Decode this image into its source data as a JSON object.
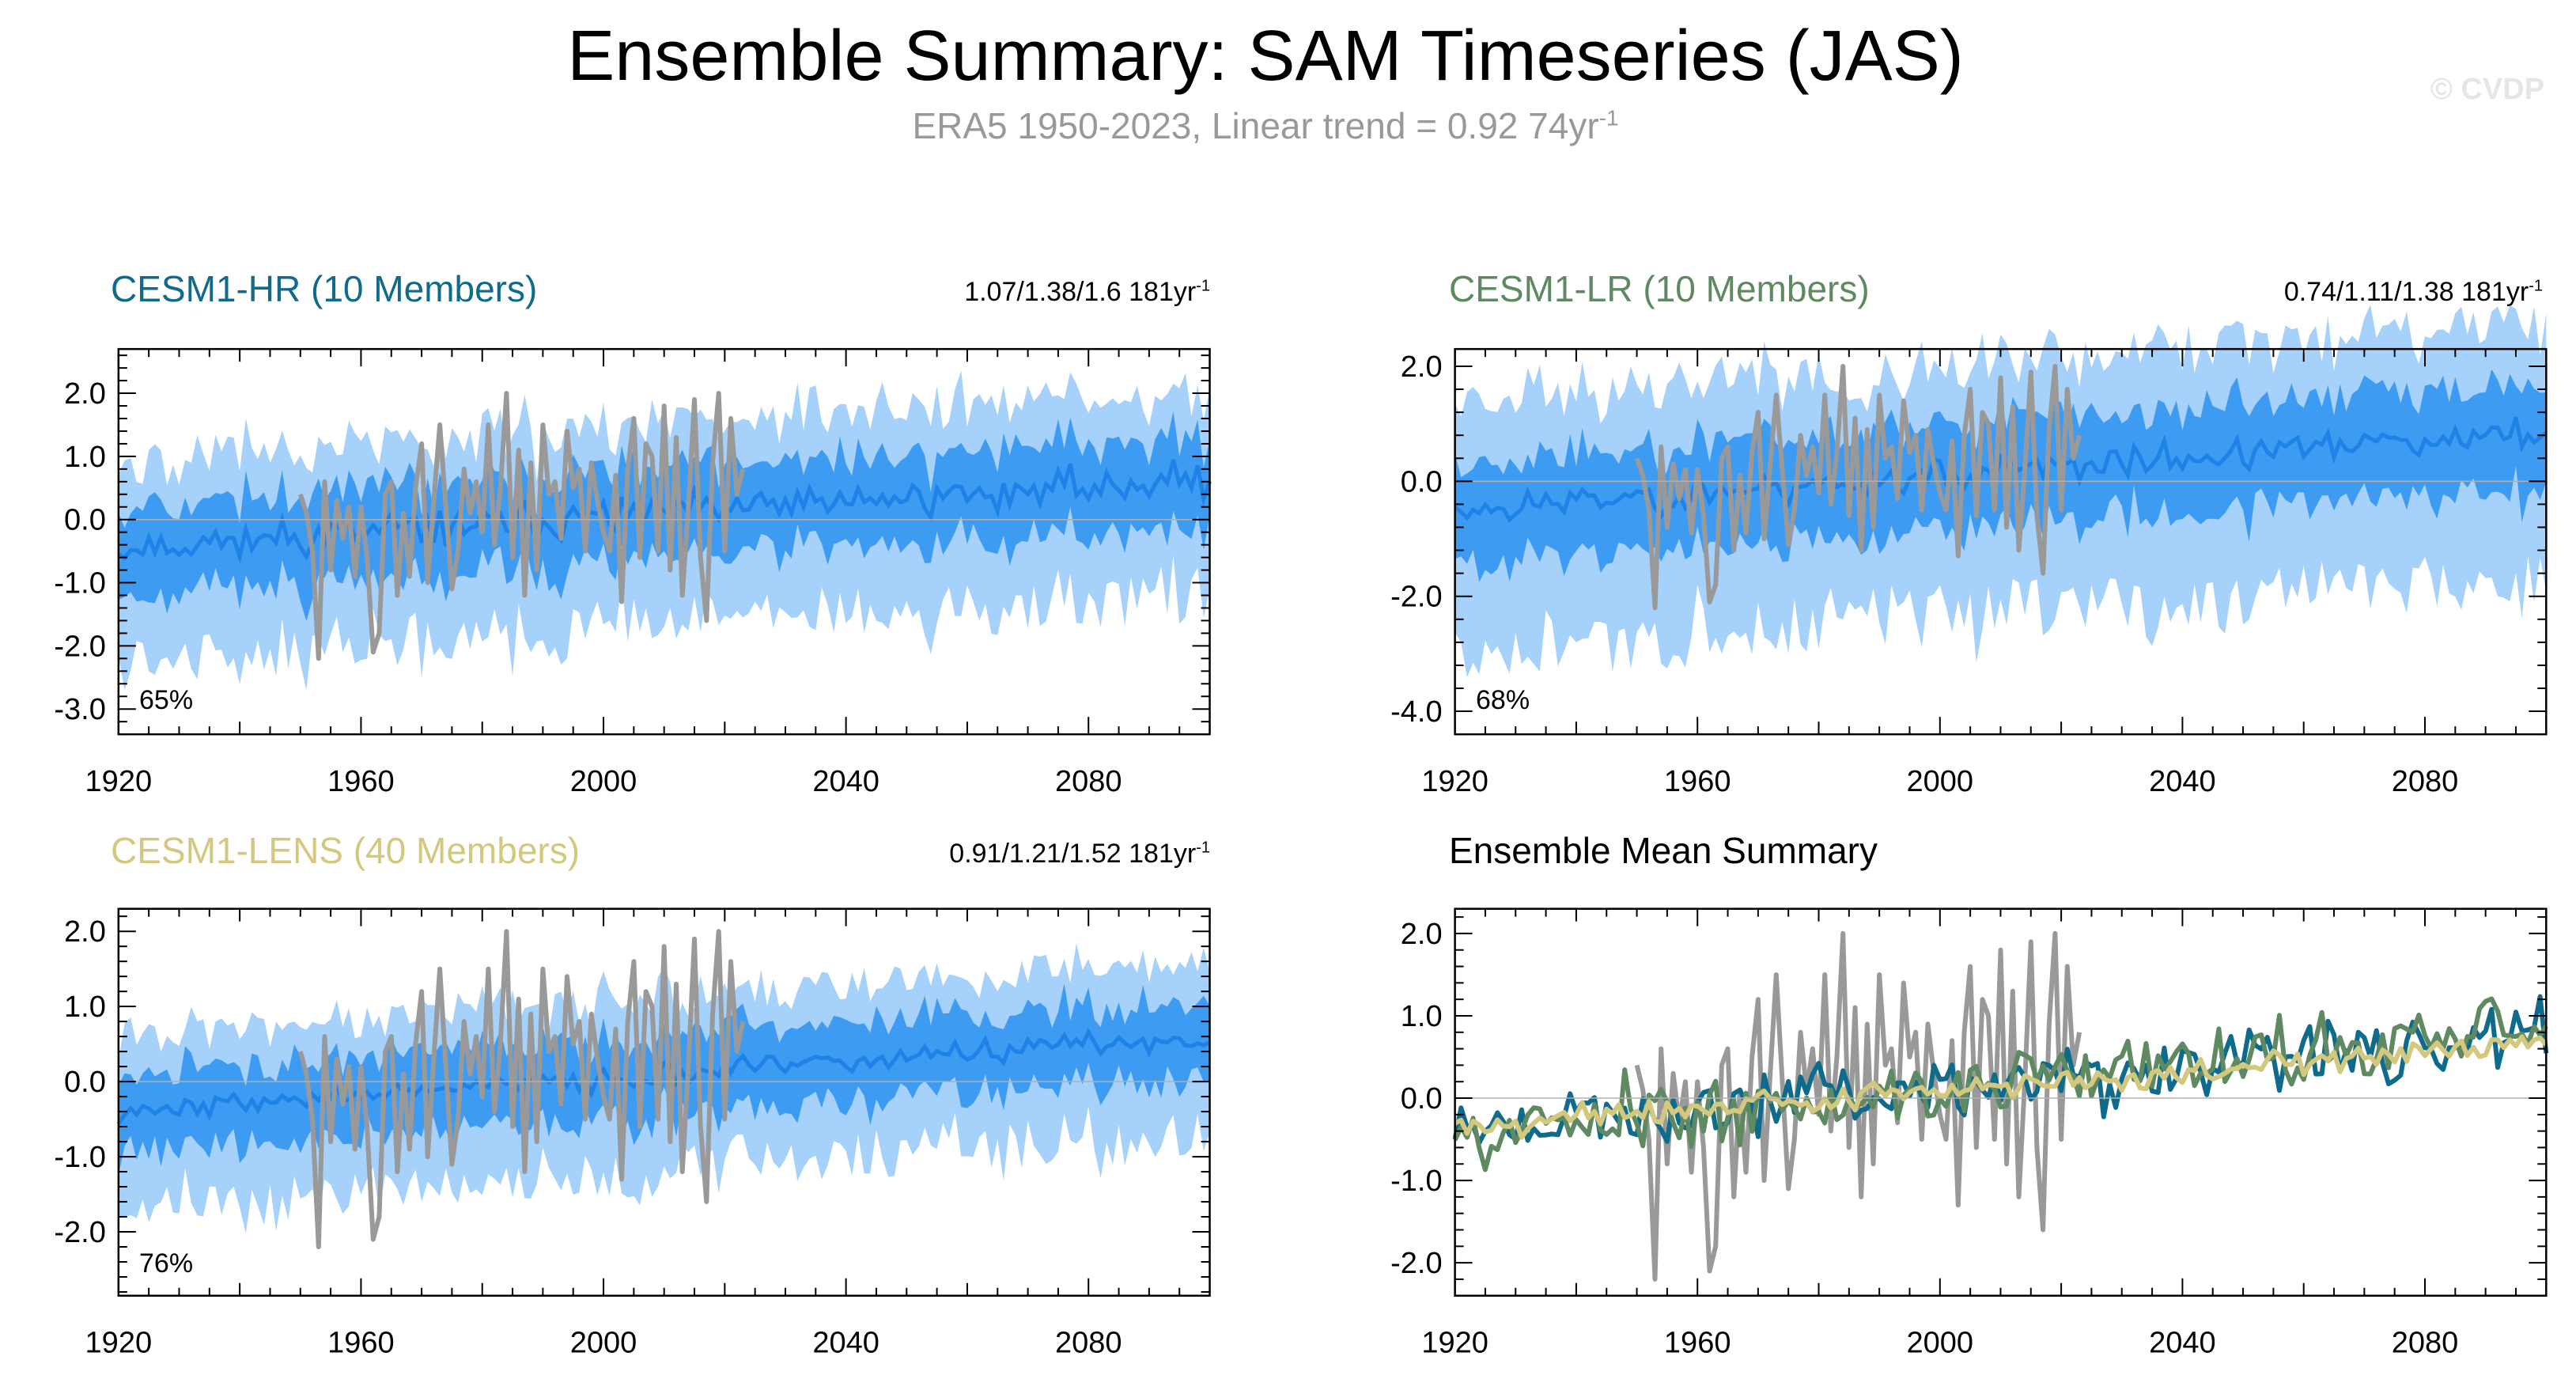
{
  "title": "Ensemble Summary: SAM Timeseries (JAS)",
  "subtitle": {
    "text": "ERA5 1950-2023, Linear trend = 0.92 74yr",
    "sup": "-1"
  },
  "watermark": "© CVDP",
  "colors": {
    "band_outer": "#a6d1fb",
    "band_inner": "#3d9bf2",
    "ens_mean": "#1e82e6",
    "obs": "#999999",
    "hr": "#0f6b8c",
    "lr": "#5f8a61",
    "lens": "#d3c87e"
  },
  "chart_data": [
    {
      "id": "hr",
      "type": "area",
      "title": "CESM1-HR (10 Members)",
      "title_color": "#0f6b8c",
      "trend": {
        "text": "1.07/1.38/1.6 181yr",
        "sup": "-1"
      },
      "percent": "65%",
      "x_range": [
        1920,
        2100
      ],
      "ylim": [
        -3.4,
        2.7
      ],
      "yticks": [
        2.0,
        1.0,
        0.0,
        -1.0,
        -2.0,
        -3.0
      ],
      "ytick_labels": [
        "2.0",
        "1.0",
        "0.0",
        "-1.0",
        "-2.0",
        "-3.0"
      ],
      "xticks": [
        1920,
        1960,
        2000,
        2040,
        2080
      ],
      "xtick_labels": [
        "1920",
        "1960",
        "2000",
        "2040",
        "2080"
      ],
      "trend_start": -0.45,
      "trend_end": 0.65,
      "var": 1.0,
      "inner_width": 0.75,
      "outer_width": 1.6,
      "seed": 11
    },
    {
      "id": "lr",
      "type": "area",
      "title": "CESM1-LR (10 Members)",
      "title_color": "#5f8a61",
      "trend": {
        "text": "0.74/1.11/1.38 181yr",
        "sup": "-1"
      },
      "percent": "68%",
      "x_range": [
        1920,
        2100
      ],
      "ylim": [
        -4.4,
        2.3
      ],
      "yticks": [
        2.0,
        0.0,
        -2.0,
        -4.0
      ],
      "ytick_labels": [
        "2.0",
        "0.0",
        "-2.0",
        "-4.0"
      ],
      "xticks": [
        1920,
        1960,
        2000,
        2040,
        2080
      ],
      "xtick_labels": [
        "1920",
        "1960",
        "2000",
        "2040",
        "2080"
      ],
      "trend_start": -0.5,
      "trend_end": 0.85,
      "var": 1.0,
      "inner_width": 0.95,
      "outer_width": 2.2,
      "seed": 23
    },
    {
      "id": "lens",
      "type": "area",
      "title": "CESM1-LENS (40 Members)",
      "title_color": "#d3c87e",
      "trend": {
        "text": "0.91/1.21/1.52 181yr",
        "sup": "-1"
      },
      "percent": "76%",
      "x_range": [
        1920,
        2100
      ],
      "ylim": [
        -2.85,
        2.3
      ],
      "yticks": [
        2.0,
        1.0,
        0.0,
        -1.0,
        -2.0
      ],
      "ytick_labels": [
        "2.0",
        "1.0",
        "0.0",
        "-1.0",
        "-2.0"
      ],
      "xticks": [
        1920,
        1960,
        2000,
        2040,
        2080
      ],
      "xtick_labels": [
        "1920",
        "1960",
        "2000",
        "2040",
        "2080"
      ],
      "trend_start": -0.4,
      "trend_end": 0.6,
      "var": 0.35,
      "inner_width": 0.55,
      "outer_width": 1.15,
      "seed": 37
    },
    {
      "id": "summary",
      "type": "line",
      "title": "Ensemble Mean Summary",
      "title_color": "#000000",
      "x_range": [
        1920,
        2100
      ],
      "ylim": [
        -2.4,
        2.3
      ],
      "yticks": [
        2.0,
        1.0,
        0.0,
        -1.0,
        -2.0
      ],
      "ytick_labels": [
        "2.0",
        "1.0",
        "0.0",
        "-1.0",
        "-2.0"
      ],
      "xticks": [
        1920,
        1960,
        2000,
        2040,
        2080
      ],
      "xtick_labels": [
        "1920",
        "1960",
        "2000",
        "2040",
        "2080"
      ],
      "series": [
        {
          "name": "ERA5",
          "color_key": "obs"
        },
        {
          "name": "CESM1-HR",
          "color_key": "hr"
        },
        {
          "name": "CESM1-LR",
          "color_key": "lr"
        },
        {
          "name": "CESM1-LENS",
          "color_key": "lens"
        }
      ]
    }
  ],
  "observations": {
    "name": "ERA5",
    "years": [
      1950,
      2023
    ],
    "values": [
      0.4,
      0.1,
      -0.5,
      -2.2,
      0.6,
      -0.8,
      0.3,
      -0.3,
      0.2,
      -0.9,
      0.2,
      -0.6,
      -2.1,
      -1.8,
      0.4,
      0.6,
      -1.2,
      0.1,
      -0.9,
      0.5,
      1.2,
      -1.0,
      0.3,
      1.5,
      0.2,
      -1.1,
      -0.5,
      0.8,
      0.1,
      0.6,
      -0.2,
      1.5,
      -0.4,
      0.5,
      2.0,
      -0.6,
      1.1,
      -1.2,
      0.9,
      -0.8,
      1.5,
      0.4,
      0.6,
      -0.3,
      1.4,
      0.5,
      0.8,
      -0.5,
      0.9,
      0.3,
      -0.2,
      -0.5,
      0.7,
      -1.3,
      0.8,
      1.6,
      -0.6,
      1.2,
      1.0,
      -0.5,
      1.8,
      -0.8,
      1.3,
      -1.2,
      0.2,
      1.9,
      -0.6,
      -1.6,
      0.9,
      2.0,
      -0.5,
      1.6,
      0.4,
      0.8
    ]
  }
}
